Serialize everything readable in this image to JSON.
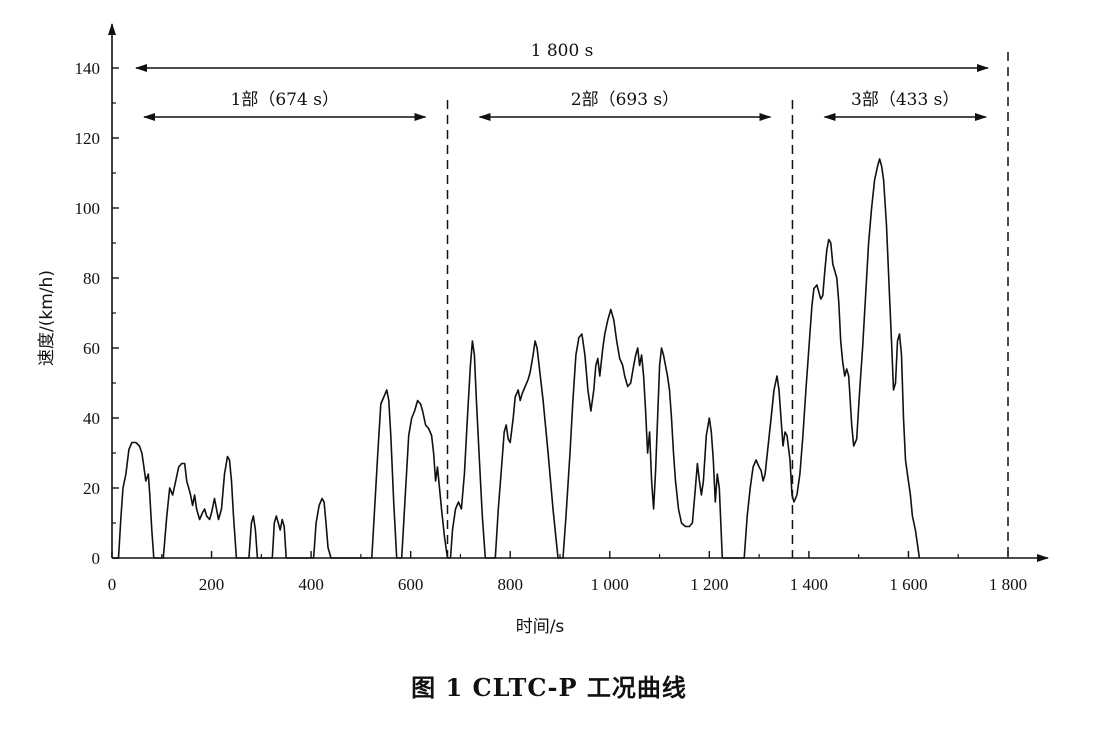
{
  "caption": "图 1   CLTC-P 工况曲线",
  "chart_data": {
    "type": "line",
    "title": "",
    "xlabel": "时间/s",
    "ylabel": "速度/(km/h)",
    "xlim": [
      0,
      1800
    ],
    "ylim": [
      0,
      140
    ],
    "x_ticks": [
      0,
      200,
      400,
      600,
      800,
      1000,
      1200,
      1400,
      1600,
      1800
    ],
    "x_tick_labels": [
      "0",
      "200",
      "400",
      "600",
      "800",
      "1 000",
      "1 200",
      "1 400",
      "1 600",
      "1 800"
    ],
    "y_ticks": [
      0,
      20,
      40,
      60,
      80,
      100,
      120,
      140
    ],
    "y_tick_labels": [
      "0",
      "20",
      "40",
      "60",
      "80",
      "100",
      "120",
      "140"
    ],
    "grid": false,
    "phase_boundaries": [
      674,
      1367,
      1800
    ],
    "spans": [
      {
        "label": "1 800 s",
        "start": 0,
        "end": 1800,
        "y": 140
      },
      {
        "label": "1部（674 s）",
        "start": 0,
        "end": 674,
        "y": 126
      },
      {
        "label": "2部（693 s）",
        "start": 674,
        "end": 1367,
        "y": 126
      },
      {
        "label": "3部（433 s）",
        "start": 1367,
        "end": 1800,
        "y": 126
      }
    ],
    "series": [
      {
        "points": [
          [
            0,
            0
          ],
          [
            13,
            0
          ],
          [
            18,
            12
          ],
          [
            22,
            20
          ],
          [
            28,
            24
          ],
          [
            34,
            31
          ],
          [
            40,
            33
          ],
          [
            48,
            33
          ],
          [
            55,
            32
          ],
          [
            60,
            30
          ],
          [
            64,
            26
          ],
          [
            68,
            22
          ],
          [
            73,
            24
          ],
          [
            76,
            18
          ],
          [
            80,
            8
          ],
          [
            84,
            0
          ],
          [
            103,
            0
          ],
          [
            110,
            12
          ],
          [
            116,
            20
          ],
          [
            122,
            18
          ],
          [
            128,
            22
          ],
          [
            134,
            26
          ],
          [
            140,
            27
          ],
          [
            146,
            27
          ],
          [
            150,
            22
          ],
          [
            154,
            20
          ],
          [
            158,
            18
          ],
          [
            162,
            15
          ],
          [
            166,
            18
          ],
          [
            170,
            14
          ],
          [
            176,
            11
          ],
          [
            182,
            13
          ],
          [
            186,
            14
          ],
          [
            190,
            12
          ],
          [
            196,
            11
          ],
          [
            200,
            13
          ],
          [
            206,
            17
          ],
          [
            210,
            14
          ],
          [
            214,
            11
          ],
          [
            220,
            14
          ],
          [
            226,
            24
          ],
          [
            232,
            29
          ],
          [
            236,
            28
          ],
          [
            240,
            22
          ],
          [
            244,
            12
          ],
          [
            250,
            0
          ],
          [
            275,
            0
          ],
          [
            280,
            10
          ],
          [
            284,
            12
          ],
          [
            288,
            8
          ],
          [
            292,
            0
          ],
          [
            322,
            0
          ],
          [
            326,
            10
          ],
          [
            330,
            12
          ],
          [
            334,
            10
          ],
          [
            338,
            8
          ],
          [
            342,
            11
          ],
          [
            346,
            9
          ],
          [
            350,
            0
          ],
          [
            405,
            0
          ],
          [
            410,
            10
          ],
          [
            416,
            15
          ],
          [
            422,
            17
          ],
          [
            426,
            16
          ],
          [
            430,
            10
          ],
          [
            434,
            3
          ],
          [
            440,
            0
          ],
          [
            522,
            0
          ],
          [
            528,
            15
          ],
          [
            534,
            30
          ],
          [
            540,
            44
          ],
          [
            546,
            46
          ],
          [
            552,
            48
          ],
          [
            556,
            45
          ],
          [
            560,
            35
          ],
          [
            566,
            16
          ],
          [
            572,
            0
          ],
          [
            582,
            0
          ],
          [
            590,
            20
          ],
          [
            596,
            35
          ],
          [
            602,
            40
          ],
          [
            608,
            42
          ],
          [
            614,
            45
          ],
          [
            620,
            44
          ],
          [
            624,
            42
          ],
          [
            630,
            38
          ],
          [
            636,
            37
          ],
          [
            642,
            35
          ],
          [
            646,
            30
          ],
          [
            650,
            22
          ],
          [
            654,
            26
          ],
          [
            658,
            20
          ],
          [
            662,
            14
          ],
          [
            668,
            6
          ],
          [
            674,
            0
          ],
          [
            680,
            0
          ],
          [
            684,
            8
          ],
          [
            690,
            14
          ],
          [
            696,
            16
          ],
          [
            702,
            14
          ],
          [
            708,
            24
          ],
          [
            714,
            40
          ],
          [
            720,
            55
          ],
          [
            724,
            62
          ],
          [
            728,
            58
          ],
          [
            732,
            45
          ],
          [
            738,
            28
          ],
          [
            744,
            12
          ],
          [
            750,
            0
          ],
          [
            770,
            0
          ],
          [
            776,
            14
          ],
          [
            782,
            25
          ],
          [
            788,
            36
          ],
          [
            792,
            38
          ],
          [
            796,
            34
          ],
          [
            800,
            33
          ],
          [
            806,
            40
          ],
          [
            810,
            46
          ],
          [
            816,
            48
          ],
          [
            820,
            45
          ],
          [
            824,
            47
          ],
          [
            830,
            49
          ],
          [
            836,
            51
          ],
          [
            840,
            53
          ],
          [
            846,
            58
          ],
          [
            850,
            62
          ],
          [
            854,
            60
          ],
          [
            858,
            55
          ],
          [
            866,
            45
          ],
          [
            876,
            30
          ],
          [
            886,
            14
          ],
          [
            896,
            0
          ],
          [
            906,
            0
          ],
          [
            912,
            12
          ],
          [
            920,
            30
          ],
          [
            926,
            45
          ],
          [
            932,
            58
          ],
          [
            938,
            63
          ],
          [
            944,
            64
          ],
          [
            950,
            58
          ],
          [
            956,
            48
          ],
          [
            962,
            42
          ],
          [
            968,
            48
          ],
          [
            972,
            55
          ],
          [
            976,
            57
          ],
          [
            980,
            52
          ],
          [
            986,
            60
          ],
          [
            990,
            64
          ],
          [
            996,
            68
          ],
          [
            1002,
            71
          ],
          [
            1008,
            68
          ],
          [
            1014,
            62
          ],
          [
            1020,
            57
          ],
          [
            1026,
            55
          ],
          [
            1030,
            52
          ],
          [
            1036,
            49
          ],
          [
            1042,
            50
          ],
          [
            1048,
            55
          ],
          [
            1052,
            58
          ],
          [
            1056,
            60
          ],
          [
            1060,
            55
          ],
          [
            1064,
            58
          ],
          [
            1068,
            52
          ],
          [
            1072,
            42
          ],
          [
            1076,
            30
          ],
          [
            1080,
            36
          ],
          [
            1084,
            22
          ],
          [
            1088,
            14
          ],
          [
            1092,
            25
          ],
          [
            1096,
            40
          ],
          [
            1100,
            55
          ],
          [
            1104,
            60
          ],
          [
            1108,
            58
          ],
          [
            1112,
            55
          ],
          [
            1116,
            52
          ],
          [
            1120,
            48
          ],
          [
            1124,
            40
          ],
          [
            1128,
            30
          ],
          [
            1132,
            22
          ],
          [
            1138,
            14
          ],
          [
            1144,
            10
          ],
          [
            1152,
            9
          ],
          [
            1160,
            9
          ],
          [
            1166,
            10
          ],
          [
            1172,
            20
          ],
          [
            1176,
            27
          ],
          [
            1180,
            22
          ],
          [
            1184,
            18
          ],
          [
            1188,
            22
          ],
          [
            1194,
            35
          ],
          [
            1200,
            40
          ],
          [
            1204,
            36
          ],
          [
            1208,
            28
          ],
          [
            1212,
            16
          ],
          [
            1216,
            24
          ],
          [
            1220,
            20
          ],
          [
            1226,
            0
          ],
          [
            1270,
            0
          ],
          [
            1276,
            12
          ],
          [
            1282,
            20
          ],
          [
            1288,
            26
          ],
          [
            1294,
            28
          ],
          [
            1300,
            26
          ],
          [
            1304,
            25
          ],
          [
            1308,
            22
          ],
          [
            1312,
            24
          ],
          [
            1318,
            32
          ],
          [
            1324,
            40
          ],
          [
            1330,
            48
          ],
          [
            1336,
            52
          ],
          [
            1340,
            48
          ],
          [
            1344,
            40
          ],
          [
            1348,
            32
          ],
          [
            1352,
            36
          ],
          [
            1356,
            35
          ],
          [
            1362,
            28
          ],
          [
            1366,
            18
          ],
          [
            1370,
            16
          ],
          [
            1376,
            18
          ],
          [
            1382,
            24
          ],
          [
            1388,
            35
          ],
          [
            1394,
            48
          ],
          [
            1400,
            60
          ],
          [
            1406,
            72
          ],
          [
            1410,
            77
          ],
          [
            1416,
            78
          ],
          [
            1420,
            76
          ],
          [
            1424,
            74
          ],
          [
            1428,
            75
          ],
          [
            1432,
            82
          ],
          [
            1436,
            88
          ],
          [
            1440,
            91
          ],
          [
            1444,
            90
          ],
          [
            1448,
            84
          ],
          [
            1452,
            82
          ],
          [
            1456,
            80
          ],
          [
            1460,
            73
          ],
          [
            1464,
            62
          ],
          [
            1468,
            56
          ],
          [
            1472,
            52
          ],
          [
            1476,
            54
          ],
          [
            1480,
            52
          ],
          [
            1486,
            38
          ],
          [
            1490,
            32
          ],
          [
            1496,
            34
          ],
          [
            1502,
            48
          ],
          [
            1508,
            60
          ],
          [
            1514,
            75
          ],
          [
            1520,
            90
          ],
          [
            1526,
            100
          ],
          [
            1532,
            108
          ],
          [
            1538,
            112
          ],
          [
            1542,
            114
          ],
          [
            1546,
            112
          ],
          [
            1550,
            108
          ],
          [
            1556,
            95
          ],
          [
            1562,
            75
          ],
          [
            1566,
            62
          ],
          [
            1570,
            48
          ],
          [
            1574,
            50
          ],
          [
            1578,
            62
          ],
          [
            1582,
            64
          ],
          [
            1586,
            58
          ],
          [
            1590,
            40
          ],
          [
            1594,
            28
          ],
          [
            1600,
            22
          ],
          [
            1604,
            18
          ],
          [
            1608,
            12
          ],
          [
            1614,
            8
          ],
          [
            1618,
            4
          ],
          [
            1622,
            0
          ]
        ]
      }
    ]
  }
}
